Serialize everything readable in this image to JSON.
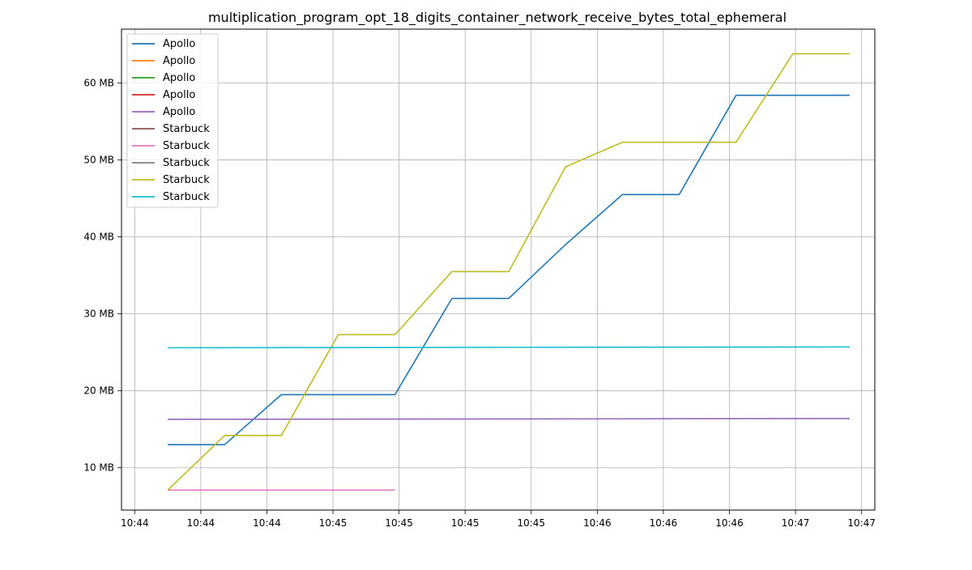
{
  "chart_data": {
    "type": "line",
    "title": "multiplication_program_opt_18_digits_container_network_receive_bytes_total_ephemeral",
    "xlabel": "",
    "ylabel": "",
    "x_ticks": [
      "10:44",
      "10:44",
      "10:44",
      "10:45",
      "10:45",
      "10:45",
      "10:45",
      "10:46",
      "10:46",
      "10:46",
      "10:47",
      "10:47"
    ],
    "x_tick_positions": [
      -0.5,
      0.5,
      1.5,
      2.5,
      3.5,
      4.5,
      5.5,
      6.5,
      7.5,
      8.5,
      9.5,
      10.5
    ],
    "xlim": [
      -0.7,
      10.7
    ],
    "y_ticks": [
      10,
      20,
      30,
      40,
      50,
      60
    ],
    "y_tick_labels": [
      "10 MB",
      "20 MB",
      "30 MB",
      "40 MB",
      "50 MB",
      "60 MB"
    ],
    "ylim": [
      4.5,
      67.0
    ],
    "grid": true,
    "legend_position": "top-left",
    "series": [
      {
        "name": "Apollo",
        "color": "#1f77b4",
        "x": [
          0,
          0.86,
          1.72,
          2.58,
          3.44,
          4.3,
          5.16,
          6.02,
          6.88,
          7.74,
          8.6,
          9.46,
          10.32
        ],
        "y": [
          13.0,
          13.0,
          19.5,
          19.5,
          19.5,
          32.0,
          32.0,
          39.0,
          45.5,
          45.5,
          58.4,
          58.4,
          58.4
        ]
      },
      {
        "name": "Apollo",
        "color": "#ff7f0e",
        "x": [],
        "y": []
      },
      {
        "name": "Apollo",
        "color": "#2ca02c",
        "x": [],
        "y": []
      },
      {
        "name": "Apollo",
        "color": "#d62728",
        "x": [],
        "y": []
      },
      {
        "name": "Apollo",
        "color": "#9467bd",
        "x": [
          0,
          10.32
        ],
        "y": [
          16.3,
          16.4
        ]
      },
      {
        "name": "Starbuck",
        "color": "#8c564b",
        "x": [],
        "y": []
      },
      {
        "name": "Starbuck",
        "color": "#e377c2",
        "x": [
          0,
          3.44
        ],
        "y": [
          7.1,
          7.1
        ]
      },
      {
        "name": "Starbuck",
        "color": "#7f7f7f",
        "x": [],
        "y": []
      },
      {
        "name": "Starbuck",
        "color": "#bcbd22",
        "x": [
          0,
          0.86,
          1.72,
          2.58,
          3.44,
          4.3,
          5.16,
          6.02,
          6.88,
          7.74,
          8.6,
          9.46,
          10.32
        ],
        "y": [
          7.1,
          14.2,
          14.2,
          27.3,
          27.3,
          35.5,
          35.5,
          49.1,
          52.3,
          52.3,
          52.3,
          63.8,
          63.8
        ]
      },
      {
        "name": "Starbuck",
        "color": "#17becf",
        "x": [
          0,
          10.32
        ],
        "y": [
          25.6,
          25.7
        ]
      }
    ]
  }
}
